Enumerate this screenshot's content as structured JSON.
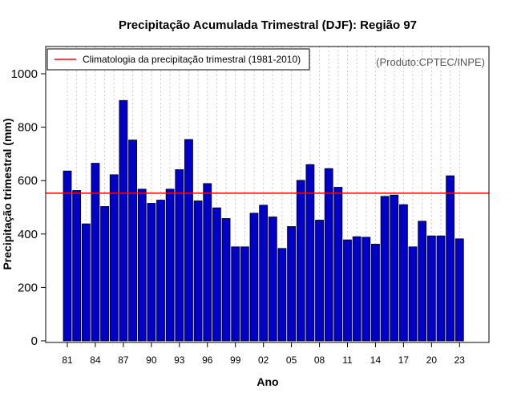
{
  "chart_data": {
    "type": "bar",
    "title": "Precipitação Acumulada Trimestral (DJF): Região 97",
    "xlabel": "Ano",
    "ylabel": "Precipitação trimestral (mm)",
    "credit": "(Produto:CPTEC/INPE)",
    "ylim": [
      0,
      1100
    ],
    "yticks": [
      0,
      200,
      400,
      600,
      800,
      1000
    ],
    "xtick_labels": [
      "81",
      "84",
      "87",
      "90",
      "93",
      "96",
      "99",
      "02",
      "05",
      "08",
      "11",
      "14",
      "17",
      "20",
      "23"
    ],
    "categories": [
      "81",
      "82",
      "83",
      "84",
      "85",
      "86",
      "87",
      "88",
      "89",
      "90",
      "91",
      "92",
      "93",
      "94",
      "95",
      "96",
      "97",
      "98",
      "99",
      "00",
      "01",
      "02",
      "03",
      "04",
      "05",
      "06",
      "07",
      "08",
      "09",
      "10",
      "11",
      "12",
      "13",
      "14",
      "15",
      "16",
      "17",
      "18",
      "19",
      "20",
      "21",
      "22",
      "23"
    ],
    "values": [
      636,
      563,
      438,
      665,
      503,
      622,
      900,
      752,
      568,
      515,
      527,
      568,
      641,
      754,
      524,
      589,
      498,
      458,
      352,
      352,
      478,
      508,
      464,
      346,
      428,
      601,
      660,
      452,
      645,
      575,
      378,
      390,
      388,
      362,
      541,
      546,
      510,
      352,
      448,
      393,
      393,
      618,
      382
    ],
    "bar_color": "#0000cc",
    "reference_line": {
      "label": "Climatologia da precipitação trimestral (1981-2010)",
      "value": 553,
      "color": "#ff0000"
    },
    "grid": "vertical dotted",
    "legend_position": "top-left"
  }
}
